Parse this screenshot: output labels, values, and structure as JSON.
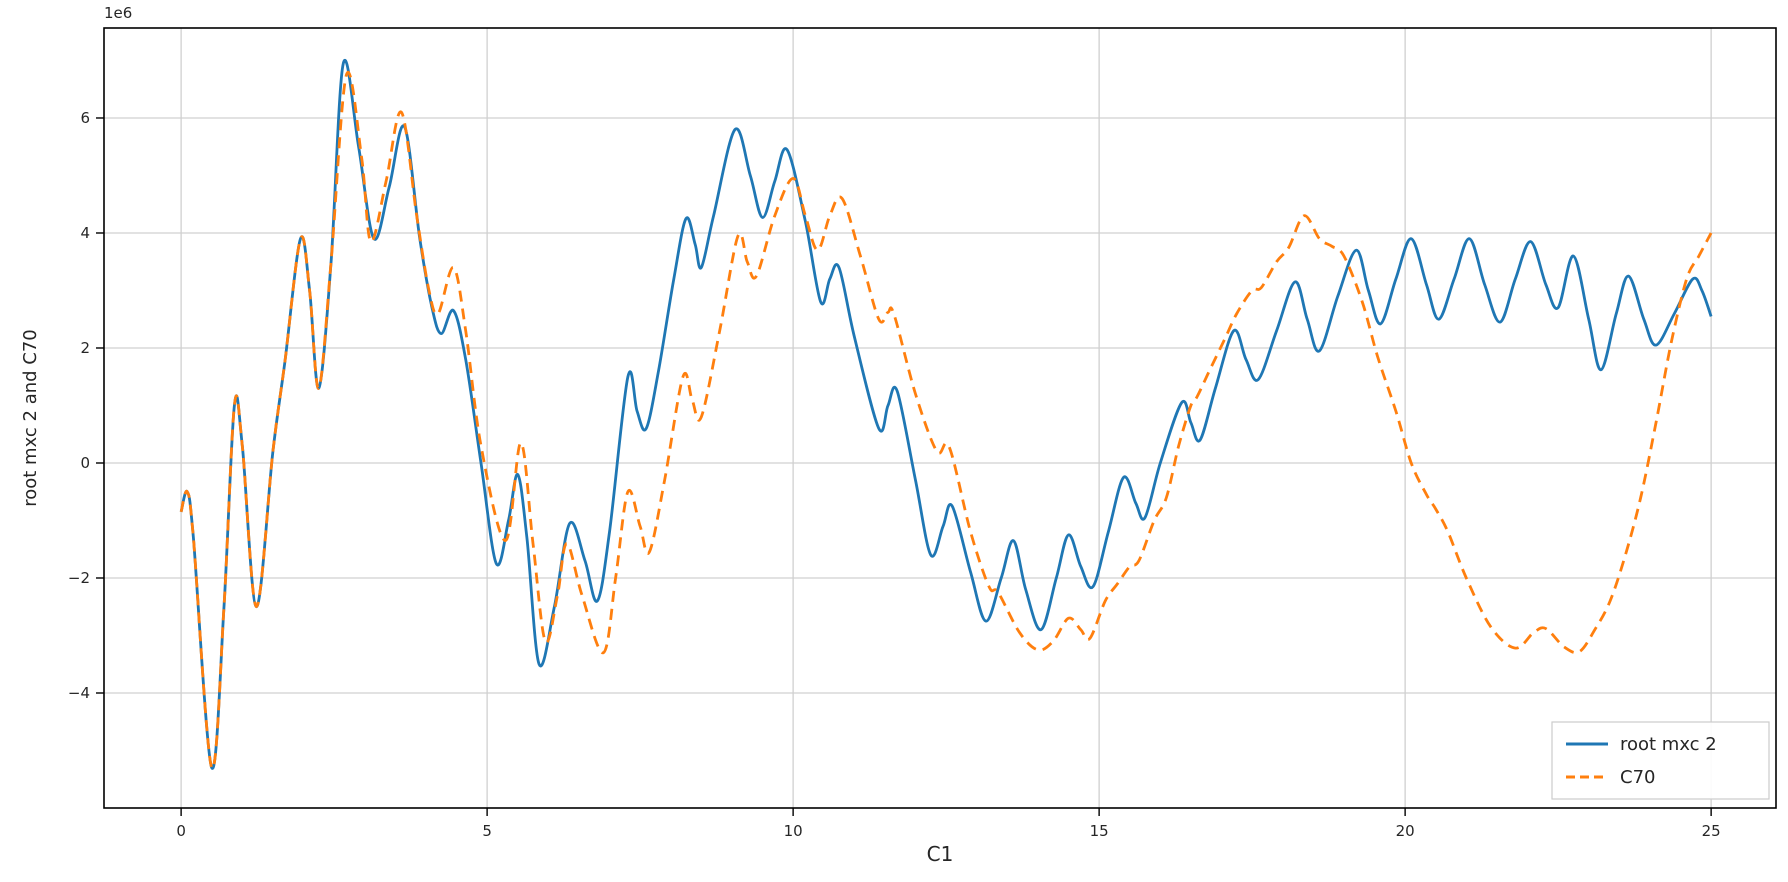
{
  "chart_data": {
    "type": "line",
    "title": "",
    "xlabel": "C1",
    "ylabel": "root mxc 2 and C70",
    "offset_text": "1e6",
    "xlim": [
      -1.26,
      26.06
    ],
    "ylim": [
      -6.0,
      7.565
    ],
    "x_ticks": [
      0,
      5,
      10,
      15,
      20,
      25
    ],
    "y_ticks": [
      -4,
      -2,
      0,
      2,
      4,
      6
    ],
    "grid": true,
    "legend_position": "lower right",
    "series": [
      {
        "name": "root mxc 2",
        "color": "#1f77b4",
        "style": "solid",
        "points": [
          [
            0,
            -0.85
          ],
          [
            0.1,
            -0.5
          ],
          [
            0.2,
            -1.3
          ],
          [
            0.5,
            -5.3
          ],
          [
            0.7,
            -2.5
          ],
          [
            0.87,
            1.0
          ],
          [
            1.0,
            0.3
          ],
          [
            1.23,
            -2.5
          ],
          [
            1.5,
            0.2
          ],
          [
            1.7,
            1.8
          ],
          [
            1.95,
            3.9
          ],
          [
            2.1,
            3.0
          ],
          [
            2.25,
            1.3
          ],
          [
            2.45,
            3.5
          ],
          [
            2.65,
            6.95
          ],
          [
            2.9,
            5.5
          ],
          [
            3.15,
            3.9
          ],
          [
            3.4,
            4.8
          ],
          [
            3.65,
            5.85
          ],
          [
            3.9,
            3.9
          ],
          [
            4.1,
            2.7
          ],
          [
            4.25,
            2.25
          ],
          [
            4.45,
            2.65
          ],
          [
            4.65,
            1.8
          ],
          [
            4.9,
            0.0
          ],
          [
            5.15,
            -1.75
          ],
          [
            5.35,
            -1.0
          ],
          [
            5.5,
            -0.2
          ],
          [
            5.65,
            -1.3
          ],
          [
            5.85,
            -3.5
          ],
          [
            6.1,
            -2.5
          ],
          [
            6.35,
            -1.05
          ],
          [
            6.6,
            -1.7
          ],
          [
            6.8,
            -2.4
          ],
          [
            7.0,
            -1.2
          ],
          [
            7.3,
            1.5
          ],
          [
            7.45,
            0.9
          ],
          [
            7.6,
            0.6
          ],
          [
            7.8,
            1.6
          ],
          [
            8.05,
            3.2
          ],
          [
            8.25,
            4.25
          ],
          [
            8.4,
            3.8
          ],
          [
            8.5,
            3.4
          ],
          [
            8.7,
            4.3
          ],
          [
            9.05,
            5.8
          ],
          [
            9.3,
            5.0
          ],
          [
            9.5,
            4.27
          ],
          [
            9.7,
            4.9
          ],
          [
            9.9,
            5.45
          ],
          [
            10.2,
            4.2
          ],
          [
            10.45,
            2.8
          ],
          [
            10.6,
            3.2
          ],
          [
            10.75,
            3.4
          ],
          [
            11.0,
            2.2
          ],
          [
            11.4,
            0.6
          ],
          [
            11.55,
            1.0
          ],
          [
            11.7,
            1.25
          ],
          [
            12.0,
            -0.3
          ],
          [
            12.25,
            -1.6
          ],
          [
            12.45,
            -1.1
          ],
          [
            12.6,
            -0.75
          ],
          [
            12.9,
            -1.9
          ],
          [
            13.15,
            -2.75
          ],
          [
            13.4,
            -2.0
          ],
          [
            13.6,
            -1.35
          ],
          [
            13.8,
            -2.2
          ],
          [
            14.05,
            -2.9
          ],
          [
            14.3,
            -2.0
          ],
          [
            14.5,
            -1.25
          ],
          [
            14.7,
            -1.8
          ],
          [
            14.9,
            -2.15
          ],
          [
            15.15,
            -1.2
          ],
          [
            15.4,
            -0.25
          ],
          [
            15.6,
            -0.7
          ],
          [
            15.75,
            -0.95
          ],
          [
            16.0,
            0.0
          ],
          [
            16.35,
            1.05
          ],
          [
            16.5,
            0.7
          ],
          [
            16.65,
            0.4
          ],
          [
            16.9,
            1.3
          ],
          [
            17.2,
            2.3
          ],
          [
            17.4,
            1.8
          ],
          [
            17.6,
            1.45
          ],
          [
            17.9,
            2.3
          ],
          [
            18.2,
            3.15
          ],
          [
            18.4,
            2.5
          ],
          [
            18.6,
            1.95
          ],
          [
            18.9,
            2.9
          ],
          [
            19.2,
            3.7
          ],
          [
            19.4,
            3.0
          ],
          [
            19.6,
            2.42
          ],
          [
            19.85,
            3.2
          ],
          [
            20.1,
            3.9
          ],
          [
            20.35,
            3.1
          ],
          [
            20.55,
            2.5
          ],
          [
            20.8,
            3.2
          ],
          [
            21.05,
            3.9
          ],
          [
            21.3,
            3.1
          ],
          [
            21.55,
            2.45
          ],
          [
            21.8,
            3.2
          ],
          [
            22.05,
            3.85
          ],
          [
            22.3,
            3.1
          ],
          [
            22.5,
            2.7
          ],
          [
            22.75,
            3.6
          ],
          [
            23.0,
            2.5
          ],
          [
            23.2,
            1.62
          ],
          [
            23.45,
            2.6
          ],
          [
            23.65,
            3.25
          ],
          [
            23.9,
            2.5
          ],
          [
            24.1,
            2.05
          ],
          [
            24.4,
            2.6
          ],
          [
            24.7,
            3.2
          ],
          [
            24.85,
            3.0
          ],
          [
            25.0,
            2.55
          ]
        ]
      },
      {
        "name": "C70",
        "color": "#ff7f0e",
        "style": "dashed",
        "points": [
          [
            0,
            -0.85
          ],
          [
            0.1,
            -0.5
          ],
          [
            0.2,
            -1.3
          ],
          [
            0.5,
            -5.3
          ],
          [
            0.7,
            -2.5
          ],
          [
            0.87,
            1.0
          ],
          [
            1.0,
            0.3
          ],
          [
            1.23,
            -2.5
          ],
          [
            1.5,
            0.2
          ],
          [
            1.7,
            1.8
          ],
          [
            1.95,
            3.9
          ],
          [
            2.1,
            3.0
          ],
          [
            2.25,
            1.3
          ],
          [
            2.45,
            3.5
          ],
          [
            2.7,
            6.75
          ],
          [
            2.95,
            5.3
          ],
          [
            3.1,
            3.85
          ],
          [
            3.35,
            4.9
          ],
          [
            3.6,
            6.1
          ],
          [
            3.85,
            4.3
          ],
          [
            4.05,
            3.0
          ],
          [
            4.2,
            2.6
          ],
          [
            4.45,
            3.4
          ],
          [
            4.65,
            2.3
          ],
          [
            4.9,
            0.3
          ],
          [
            5.3,
            -1.35
          ],
          [
            5.55,
            0.35
          ],
          [
            5.75,
            -1.4
          ],
          [
            5.95,
            -3.1
          ],
          [
            6.15,
            -2.3
          ],
          [
            6.3,
            -1.4
          ],
          [
            6.55,
            -2.3
          ],
          [
            6.9,
            -3.3
          ],
          [
            7.1,
            -2.0
          ],
          [
            7.3,
            -0.5
          ],
          [
            7.5,
            -1.1
          ],
          [
            7.65,
            -1.55
          ],
          [
            7.9,
            -0.3
          ],
          [
            8.2,
            1.5
          ],
          [
            8.35,
            1.1
          ],
          [
            8.5,
            0.8
          ],
          [
            8.8,
            2.3
          ],
          [
            9.1,
            3.95
          ],
          [
            9.25,
            3.5
          ],
          [
            9.4,
            3.25
          ],
          [
            9.7,
            4.3
          ],
          [
            10.0,
            4.95
          ],
          [
            10.2,
            4.3
          ],
          [
            10.4,
            3.7
          ],
          [
            10.6,
            4.3
          ],
          [
            10.8,
            4.6
          ],
          [
            11.1,
            3.6
          ],
          [
            11.4,
            2.5
          ],
          [
            11.55,
            2.62
          ],
          [
            11.65,
            2.58
          ],
          [
            12.0,
            1.2
          ],
          [
            12.35,
            0.2
          ],
          [
            12.55,
            0.28
          ],
          [
            12.9,
            -1.2
          ],
          [
            13.2,
            -2.15
          ],
          [
            13.35,
            -2.25
          ],
          [
            13.7,
            -2.95
          ],
          [
            14.0,
            -3.25
          ],
          [
            14.25,
            -3.1
          ],
          [
            14.5,
            -2.7
          ],
          [
            14.7,
            -2.9
          ],
          [
            14.85,
            -3.05
          ],
          [
            15.1,
            -2.4
          ],
          [
            15.3,
            -2.1
          ],
          [
            15.5,
            -1.8
          ],
          [
            15.65,
            -1.7
          ],
          [
            15.9,
            -1.0
          ],
          [
            16.1,
            -0.6
          ],
          [
            16.3,
            0.3
          ],
          [
            16.5,
            1.0
          ],
          [
            16.6,
            1.15
          ],
          [
            16.8,
            1.6
          ],
          [
            17.05,
            2.15
          ],
          [
            17.25,
            2.6
          ],
          [
            17.5,
            3.0
          ],
          [
            17.65,
            3.05
          ],
          [
            17.9,
            3.5
          ],
          [
            18.1,
            3.75
          ],
          [
            18.35,
            4.3
          ],
          [
            18.6,
            3.9
          ],
          [
            18.8,
            3.77
          ],
          [
            19.0,
            3.6
          ],
          [
            19.3,
            2.8
          ],
          [
            19.55,
            1.85
          ],
          [
            19.85,
            0.9
          ],
          [
            20.1,
            0.0
          ],
          [
            20.35,
            -0.55
          ],
          [
            20.5,
            -0.8
          ],
          [
            20.7,
            -1.2
          ],
          [
            21.0,
            -2.0
          ],
          [
            21.4,
            -2.85
          ],
          [
            21.8,
            -3.22
          ],
          [
            22.1,
            -2.95
          ],
          [
            22.3,
            -2.88
          ],
          [
            22.6,
            -3.2
          ],
          [
            22.85,
            -3.28
          ],
          [
            23.1,
            -2.9
          ],
          [
            23.35,
            -2.4
          ],
          [
            23.6,
            -1.6
          ],
          [
            23.85,
            -0.6
          ],
          [
            24.1,
            0.7
          ],
          [
            24.35,
            2.1
          ],
          [
            24.6,
            3.2
          ],
          [
            24.8,
            3.6
          ],
          [
            25.0,
            4.0
          ]
        ]
      }
    ]
  },
  "legend": {
    "entries": [
      {
        "label": "root mxc 2",
        "color": "#1f77b4",
        "style": "solid"
      },
      {
        "label": "C70",
        "color": "#ff7f0e",
        "style": "dashed"
      }
    ]
  },
  "colors": {
    "grid": "#d0d0d0",
    "spine": "#000000",
    "background": "#ffffff",
    "legend_border": "#cccccc"
  }
}
